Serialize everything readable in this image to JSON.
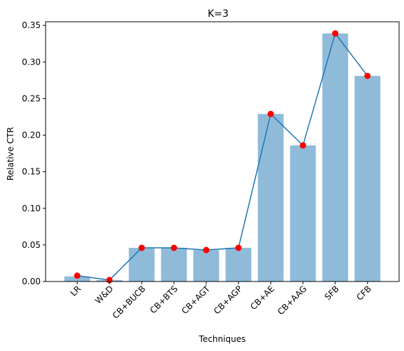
{
  "chart_data": {
    "type": "bar",
    "title": "K=3",
    "xlabel": "Techniques",
    "ylabel": "Relative CTR",
    "categories": [
      "LR",
      "W&D",
      "CB+BUCB",
      "CB+BTS",
      "CB+AGT",
      "CB+AGP",
      "CB+AE",
      "CB+AAG",
      "SFB",
      "CFB"
    ],
    "bar_values": [
      0.007,
      0.002,
      0.046,
      0.046,
      0.043,
      0.046,
      0.229,
      0.186,
      0.339,
      0.281
    ],
    "line_values": [
      0.008,
      0.002,
      0.046,
      0.046,
      0.043,
      0.046,
      0.229,
      0.186,
      0.339,
      0.281
    ],
    "ylim": [
      0,
      0.355
    ],
    "yticks": [
      "0.00",
      "0.05",
      "0.10",
      "0.15",
      "0.20",
      "0.25",
      "0.30",
      "0.35"
    ],
    "ytick_values": [
      0,
      0.05,
      0.1,
      0.15,
      0.2,
      0.25,
      0.3,
      0.35
    ],
    "grid": false,
    "legend": "none",
    "colors": {
      "bar": "#8fbbd9",
      "line": "#1f77b4",
      "marker": "#ff0000"
    }
  }
}
